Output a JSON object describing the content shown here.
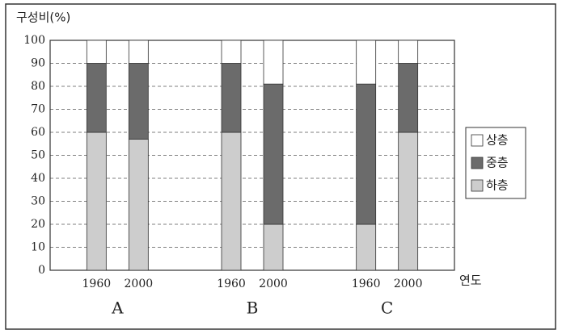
{
  "chart_data": {
    "type": "stacked_bar",
    "y_label": "구성비(%)",
    "x_label": "연도",
    "categories": [
      "1960",
      "2000",
      "1960",
      "2000",
      "1960",
      "2000"
    ],
    "groups": [
      "A",
      "B",
      "C"
    ],
    "series": [
      {
        "name": "하층",
        "color": "#cdcdcd",
        "values": [
          60,
          57,
          60,
          20,
          20,
          60
        ]
      },
      {
        "name": "중층",
        "color": "#6b6b6b",
        "values": [
          30,
          33,
          30,
          61,
          61,
          30
        ]
      },
      {
        "name": "상층",
        "color": "#ffffff",
        "values": [
          10,
          10,
          10,
          19,
          19,
          10
        ]
      }
    ],
    "ylim": [
      0,
      100
    ],
    "yticks": [
      0,
      10,
      20,
      30,
      40,
      50,
      60,
      70,
      80,
      90,
      100
    ],
    "grid": true
  }
}
